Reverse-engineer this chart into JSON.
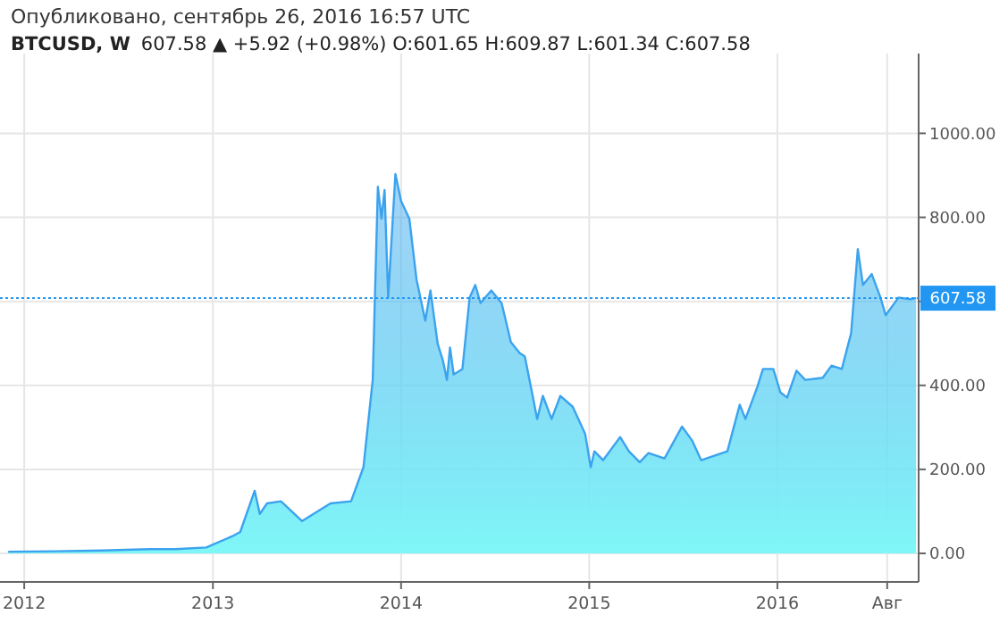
{
  "chart_data": {
    "type": "area",
    "title": "BTCUSD, W",
    "subtitle": "607.58 ▲ +5.92 (+0.98%) O:601.65 H:609.87 L:601.34 C:607.58",
    "annotations": [
      "Опубликовано, сентябрь 26, 2016 16:57 UTC"
    ],
    "x": [
      "2011-12-01",
      "2012-03-01",
      "2012-06-01",
      "2012-09-01",
      "2012-10-20",
      "2012-12-19",
      "2013-02-08",
      "2013-02-23",
      "2013-03-23",
      "2013-04-02",
      "2013-04-16",
      "2013-05-13",
      "2013-06-23",
      "2013-08-17",
      "2013-09-26",
      "2013-10-20",
      "2013-11-07",
      "2013-11-17",
      "2013-11-24",
      "2013-11-30",
      "2013-12-07",
      "2013-12-21",
      "2014-01-01",
      "2014-01-17",
      "2014-01-31",
      "2014-02-17",
      "2014-02-27",
      "2014-03-13",
      "2014-03-23",
      "2014-03-31",
      "2014-04-06",
      "2014-04-13",
      "2014-04-30",
      "2014-05-14",
      "2014-05-25",
      "2014-06-04",
      "2014-06-25",
      "2014-07-15",
      "2014-08-02",
      "2014-08-19",
      "2014-08-29",
      "2014-09-12",
      "2014-09-22",
      "2014-10-03",
      "2014-10-20",
      "2014-11-06",
      "2014-11-30",
      "2014-12-24",
      "2015-01-04",
      "2015-01-11",
      "2015-01-28",
      "2015-03-02",
      "2015-03-19",
      "2015-04-09",
      "2015-04-26",
      "2015-05-27",
      "2015-06-30",
      "2015-07-20",
      "2015-08-06",
      "2015-09-26",
      "2015-10-20",
      "2015-10-31",
      "2015-11-23",
      "2015-12-04",
      "2015-12-24",
      "2016-01-07",
      "2016-01-20",
      "2016-02-07",
      "2016-02-24",
      "2016-03-29",
      "2016-04-15",
      "2016-05-05",
      "2016-05-23",
      "2016-06-05",
      "2016-06-15",
      "2016-07-02",
      "2016-07-19",
      "2016-07-29",
      "2016-08-23",
      "2016-09-15",
      "2016-09-26"
    ],
    "series": [
      {
        "color": "#3ba3ee",
        "values": [
          4,
          5,
          7,
          10,
          10,
          14,
          41,
          51,
          149,
          94,
          119,
          124,
          77,
          119,
          124,
          205,
          413,
          873,
          797,
          865,
          609,
          903,
          839,
          797,
          652,
          554,
          626,
          499,
          460,
          413,
          490,
          426,
          439,
          609,
          639,
          596,
          626,
          596,
          503,
          477,
          469,
          383,
          320,
          375,
          320,
          375,
          349,
          285,
          205,
          243,
          222,
          277,
          243,
          217,
          239,
          226,
          302,
          268,
          222,
          243,
          354,
          320,
          396,
          439,
          439,
          383,
          371,
          435,
          413,
          418,
          447,
          439,
          524,
          724,
          639,
          665,
          609,
          567,
          609,
          605,
          608
        ]
      }
    ],
    "xlim": [
      "2011-11-15",
      "2016-10-01"
    ],
    "xticks": [
      {
        "value": "2012-01-01",
        "label": "2012"
      },
      {
        "value": "2013-01-01",
        "label": "2013"
      },
      {
        "value": "2014-01-01",
        "label": "2014"
      },
      {
        "value": "2015-01-01",
        "label": "2015"
      },
      {
        "value": "2016-01-01",
        "label": "2016"
      },
      {
        "value": "2016-08-01",
        "label": "Авг"
      }
    ],
    "ylim": [
      -68,
      1190
    ],
    "yticks": [
      {
        "value": 0,
        "label": "0.00"
      },
      {
        "value": 200,
        "label": "200.00"
      },
      {
        "value": 400,
        "label": "400.00"
      },
      {
        "value": 600,
        "label": null
      },
      {
        "value": 800,
        "label": "800.00"
      },
      {
        "value": 1000,
        "label": "1000.00"
      }
    ],
    "grid": true,
    "ref_lines": [
      {
        "axis": "y",
        "value": 607.58,
        "label": "607.58",
        "color": "#2196f3",
        "line_style": "dotted"
      }
    ]
  }
}
